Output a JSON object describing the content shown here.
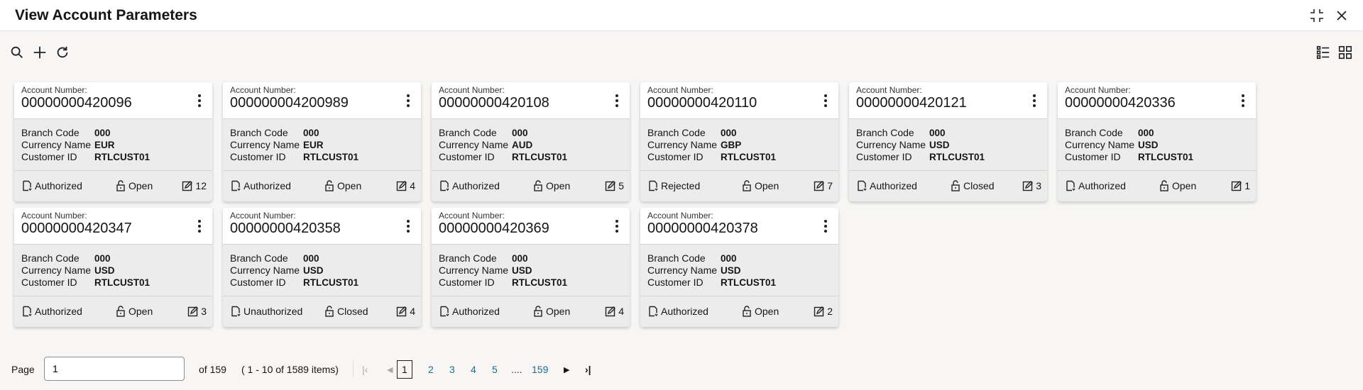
{
  "header": {
    "title": "View Account Parameters",
    "icons": [
      "minimize-icon",
      "close-icon"
    ]
  },
  "toolbar": {
    "icons": [
      "search-icon",
      "add-icon",
      "refresh-icon",
      "list-view-icon",
      "tile-view-icon"
    ]
  },
  "labels": {
    "account_number": "Account Number:",
    "branch_code": "Branch Code",
    "currency_name": "Currency Name",
    "customer_id": "Customer ID"
  },
  "cards": [
    {
      "account": "00000000420096",
      "branch": "000",
      "currency": "EUR",
      "customer": "RTLCUST01",
      "auth": "Authorized",
      "status": "Open",
      "mods": "12"
    },
    {
      "account": "000000004200989",
      "branch": "000",
      "currency": "EUR",
      "customer": "RTLCUST01",
      "auth": "Authorized",
      "status": "Open",
      "mods": "4"
    },
    {
      "account": "00000000420108",
      "branch": "000",
      "currency": "AUD",
      "customer": "RTLCUST01",
      "auth": "Authorized",
      "status": "Open",
      "mods": "5"
    },
    {
      "account": "00000000420110",
      "branch": "000",
      "currency": "GBP",
      "customer": "RTLCUST01",
      "auth": "Rejected",
      "status": "Open",
      "mods": "7"
    },
    {
      "account": "00000000420121",
      "branch": "000",
      "currency": "USD",
      "customer": "RTLCUST01",
      "auth": "Authorized",
      "status": "Closed",
      "mods": "3"
    },
    {
      "account": "00000000420336",
      "branch": "000",
      "currency": "USD",
      "customer": "RTLCUST01",
      "auth": "Authorized",
      "status": "Open",
      "mods": "1"
    },
    {
      "account": "00000000420347",
      "branch": "000",
      "currency": "USD",
      "customer": "RTLCUST01",
      "auth": "Authorized",
      "status": "Open",
      "mods": "3"
    },
    {
      "account": "00000000420358",
      "branch": "000",
      "currency": "USD",
      "customer": "RTLCUST01",
      "auth": "Unauthorized",
      "status": "Closed",
      "mods": "4"
    },
    {
      "account": "00000000420369",
      "branch": "000",
      "currency": "USD",
      "customer": "RTLCUST01",
      "auth": "Authorized",
      "status": "Open",
      "mods": "4"
    },
    {
      "account": "00000000420378",
      "branch": "000",
      "currency": "USD",
      "customer": "RTLCUST01",
      "auth": "Authorized",
      "status": "Open",
      "mods": "2"
    }
  ],
  "pagination": {
    "page_label": "Page",
    "page_value": "1",
    "of_pages": "of 159",
    "range": "( 1 - 10 of 1589 items)",
    "pages": [
      "1",
      "2",
      "3",
      "4",
      "5",
      "....",
      "159"
    ],
    "current": "1"
  }
}
